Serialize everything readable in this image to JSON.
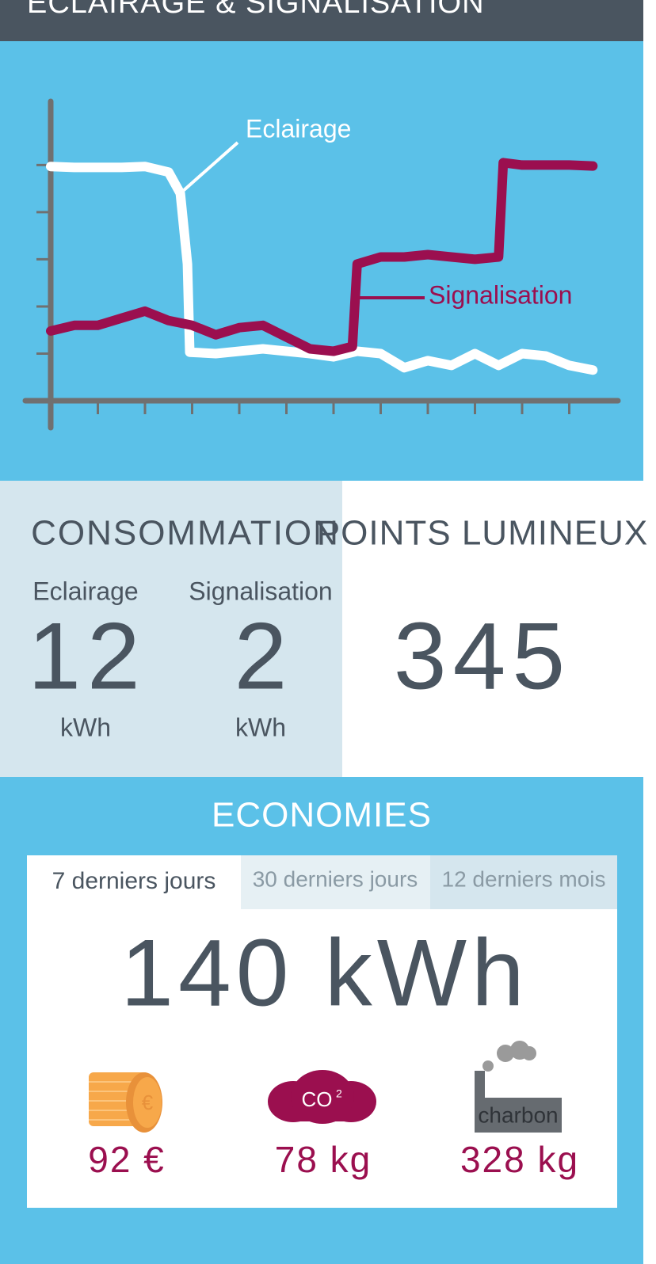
{
  "header": {
    "title": "ECLAIRAGE & SIGNALISATION"
  },
  "chart_data": {
    "type": "line",
    "xlim": [
      0,
      12
    ],
    "ylim": [
      0,
      6.3
    ],
    "xticks": [
      1,
      2,
      3,
      4,
      5,
      6,
      7,
      8,
      9,
      10,
      11
    ],
    "yticks": [
      1,
      2,
      3,
      4,
      5
    ],
    "series": [
      {
        "name": "Eclairage",
        "color": "#ffffff",
        "x": [
          0,
          0.5,
          1,
          1.5,
          2,
          2.5,
          2.75,
          2.9,
          2.95,
          3.5,
          4,
          4.5,
          5,
          5.5,
          6,
          6.5,
          7,
          7.5,
          8,
          8.5,
          9,
          9.5,
          10,
          10.5,
          11,
          11.5
        ],
        "values": [
          4.97,
          4.95,
          4.95,
          4.95,
          4.97,
          4.85,
          4.4,
          2.9,
          1.03,
          1.0,
          1.05,
          1.1,
          1.05,
          1.0,
          0.93,
          1.05,
          1.0,
          0.7,
          0.85,
          0.75,
          1.0,
          0.75,
          1.0,
          0.95,
          0.75,
          0.65
        ]
      },
      {
        "name": "Signalisation",
        "color": "#9b0f4f",
        "x": [
          0,
          0.5,
          1,
          1.5,
          2,
          2.5,
          3,
          3.5,
          4,
          4.5,
          5,
          5.5,
          6,
          6.4,
          6.5,
          7,
          7.5,
          8,
          8.5,
          9,
          9.5,
          9.6,
          10,
          10.5,
          11,
          11.5
        ],
        "values": [
          1.48,
          1.6,
          1.6,
          1.75,
          1.9,
          1.7,
          1.6,
          1.4,
          1.55,
          1.6,
          1.35,
          1.1,
          1.05,
          1.15,
          2.9,
          3.05,
          3.05,
          3.1,
          3.05,
          3.0,
          3.05,
          5.05,
          5.0,
          5.0,
          5.0,
          4.98
        ]
      }
    ]
  },
  "consumption": {
    "title": "CONSOMMATION",
    "items": [
      {
        "label": "Eclairage",
        "value": 12,
        "unit": "kWh"
      },
      {
        "label": "Signalisation",
        "value": 2,
        "unit": "kWh"
      }
    ]
  },
  "points": {
    "title": "POINTS LUMINEUX",
    "value": 345
  },
  "economies": {
    "title": "ECONOMIES",
    "tabs": [
      "7 derniers jours",
      "30 derniers jours",
      "12 derniers mois"
    ],
    "total": "140 kWh",
    "items": [
      {
        "icon_text": "€",
        "value": "92 €"
      },
      {
        "icon_text": "CO",
        "icon_sup": "2",
        "value": "78 kg"
      },
      {
        "icon_text": "charbon",
        "value": "328 kg"
      }
    ]
  }
}
